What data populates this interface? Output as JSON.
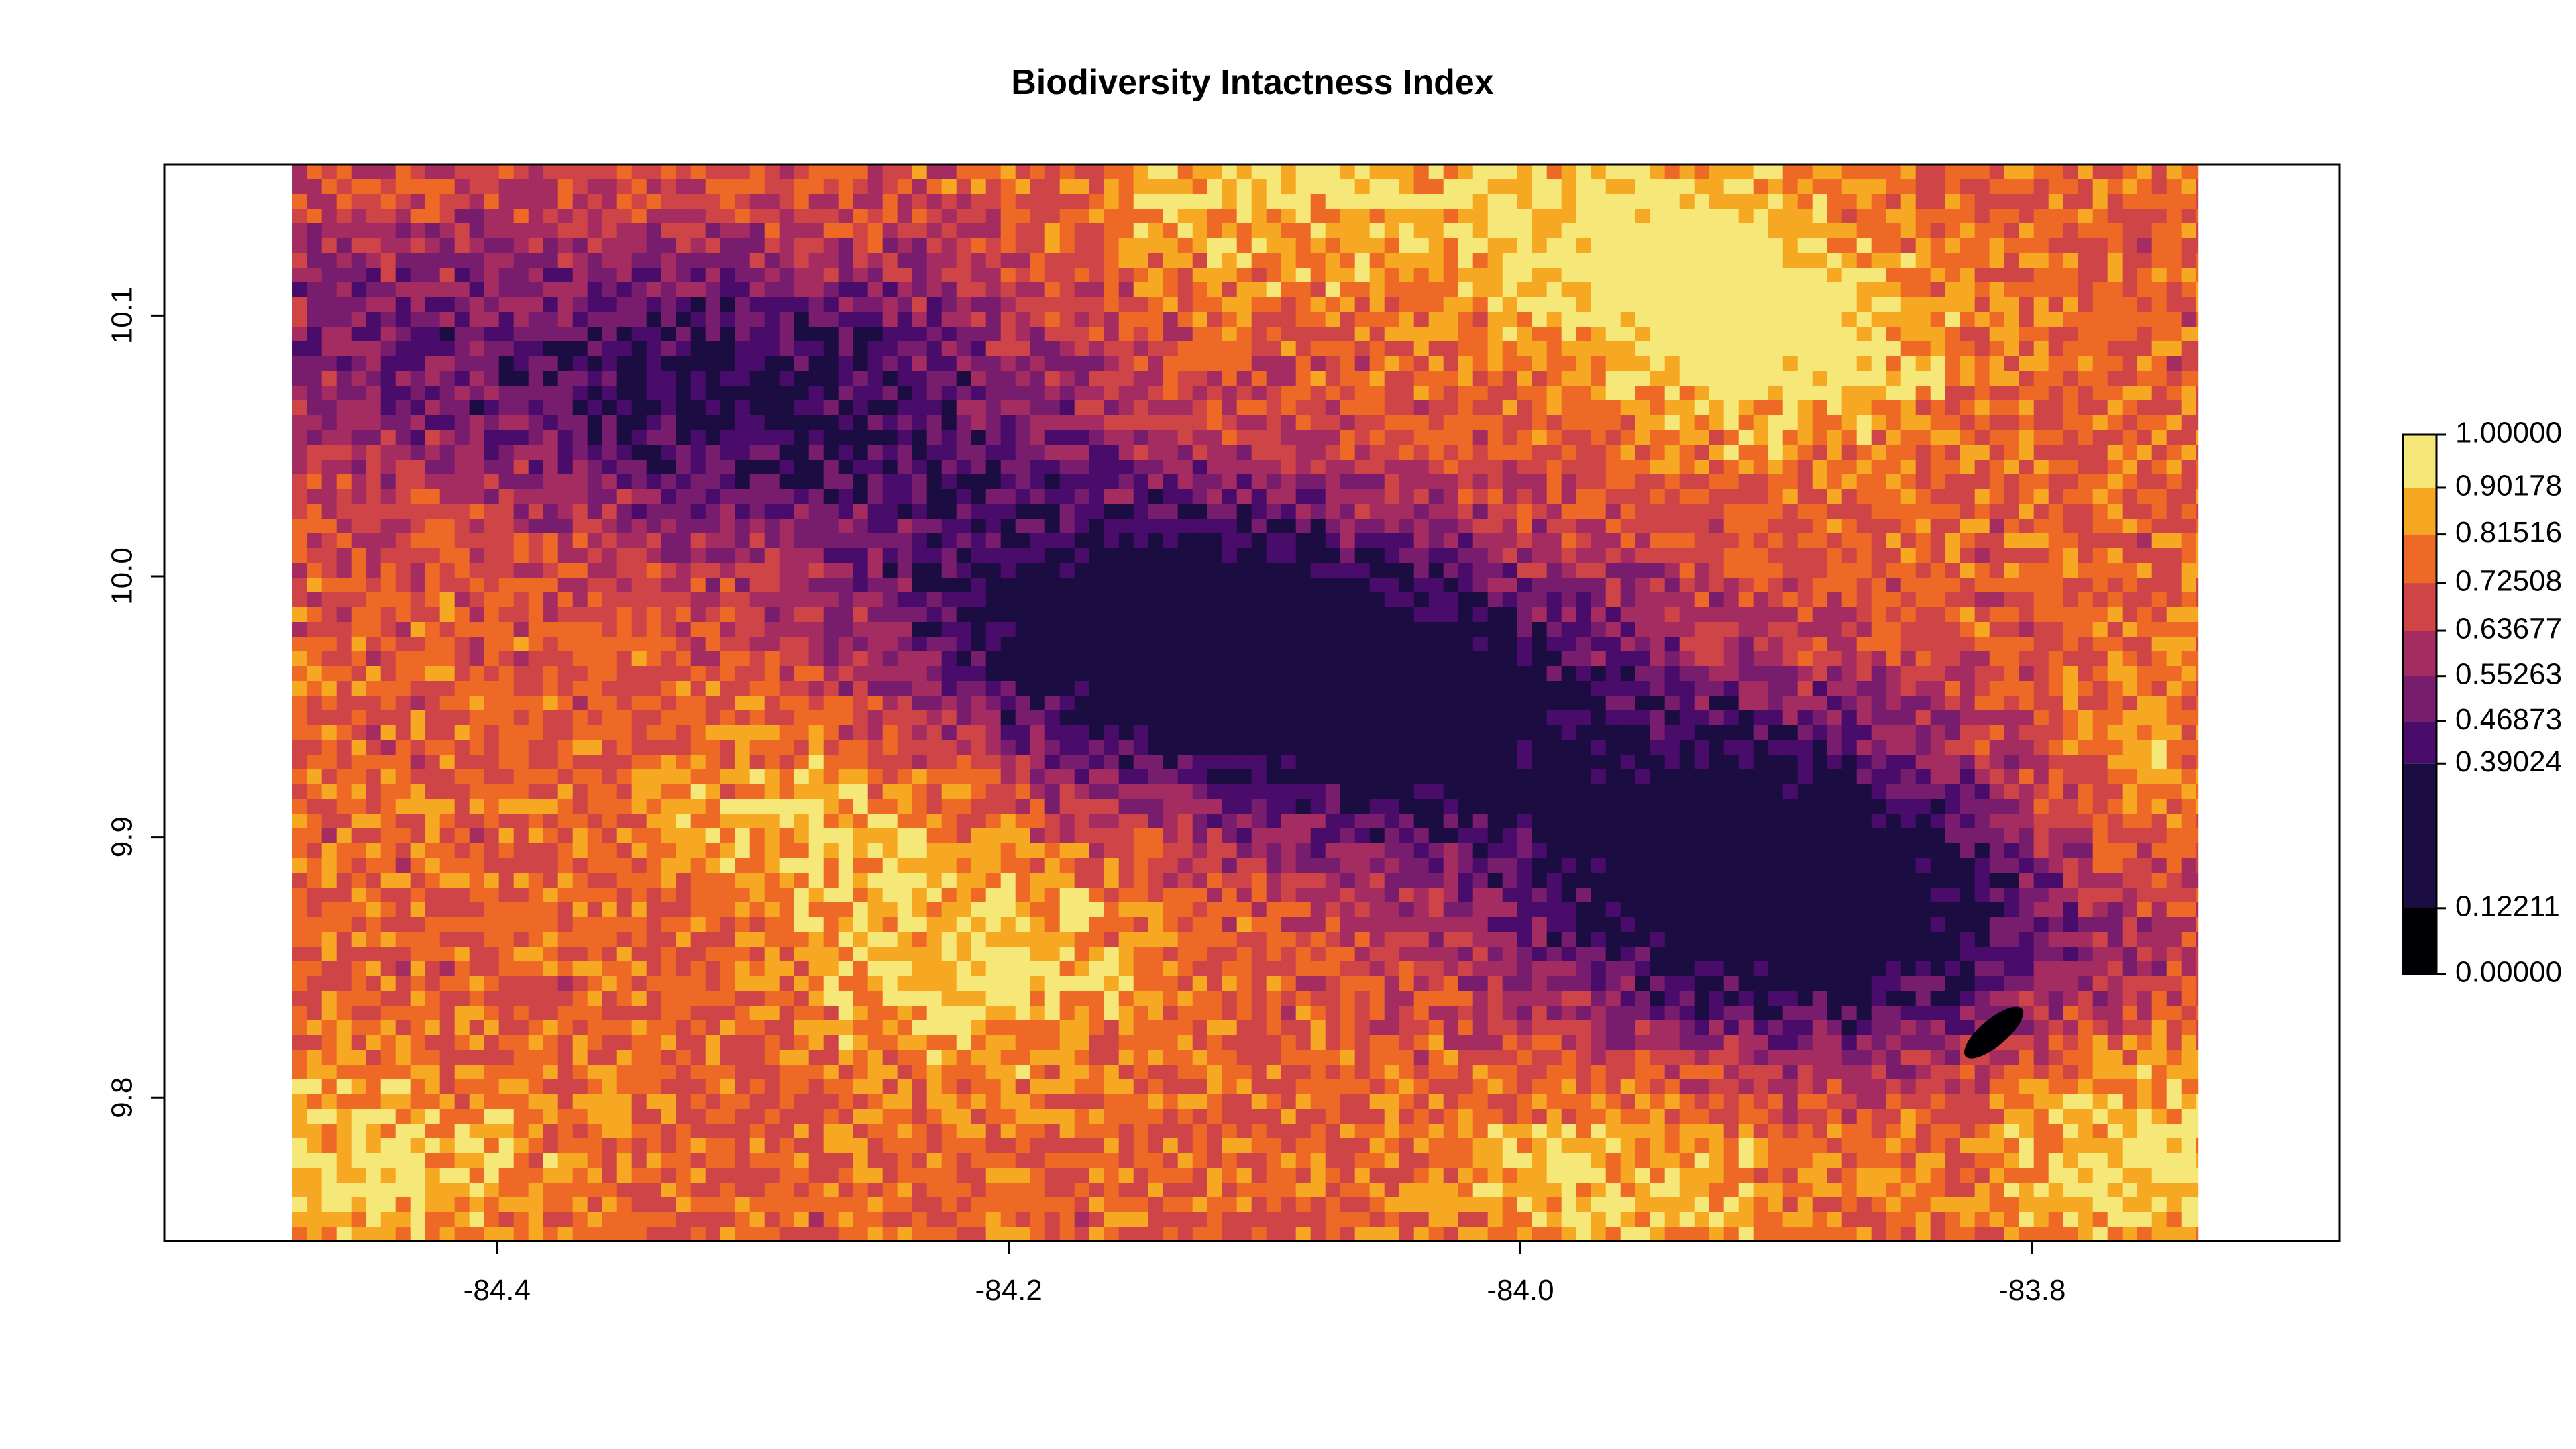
{
  "chart_data": {
    "type": "heatmap",
    "title": "Biodiversity Intactness Index",
    "xlabel": "",
    "ylabel": "",
    "xlim": [
      -84.53,
      -83.68
    ],
    "ylim": [
      9.745,
      10.158
    ],
    "raster_extent": {
      "x": [
        -84.48,
        -83.735
      ],
      "y": [
        9.745,
        10.158
      ]
    },
    "x_ticks": [
      -84.4,
      -84.2,
      -84.0,
      -83.8
    ],
    "x_tick_labels": [
      "-84.4",
      "-84.2",
      "-84.0",
      "-83.8"
    ],
    "y_ticks": [
      9.8,
      9.9,
      10.0,
      10.1
    ],
    "y_tick_labels": [
      "9.8",
      "9.9",
      "10.0",
      "10.1"
    ],
    "legend": {
      "position": "right",
      "breaks": [
        0.0,
        0.12211,
        0.39024,
        0.46873,
        0.55263,
        0.63677,
        0.72508,
        0.81516,
        0.90178,
        1.0
      ],
      "labels": [
        "0.00000",
        "0.12211",
        "0.39024",
        "0.46873",
        "0.55263",
        "0.63677",
        "0.72508",
        "0.81516",
        "0.90178",
        "1.00000"
      ],
      "colors": [
        "#000004",
        "#1b0c41",
        "#4a0c6b",
        "#781c6d",
        "#a52c60",
        "#cf4446",
        "#ed6925",
        "#f7a823",
        "#f5e878"
      ]
    },
    "low_value_zones": [
      {
        "lon": -84.15,
        "lat": 9.985,
        "value": 0.32
      },
      {
        "lon": -84.05,
        "lat": 9.95,
        "value": 0.34
      },
      {
        "lon": -84.29,
        "lat": 10.07,
        "value": 0.38
      },
      {
        "lon": -83.9,
        "lat": 9.9,
        "value": 0.4
      },
      {
        "lon": -83.88,
        "lat": 9.86,
        "value": 0.42
      },
      {
        "lon": -84.45,
        "lat": 10.09,
        "value": 0.55
      }
    ],
    "high_value_zones": [
      {
        "lon": -83.9,
        "lat": 10.09,
        "value": 0.97
      },
      {
        "lon": -83.96,
        "lat": 10.13,
        "value": 0.96
      },
      {
        "lon": -84.1,
        "lat": 10.15,
        "value": 0.93
      },
      {
        "lon": -84.21,
        "lat": 9.85,
        "value": 0.92
      },
      {
        "lon": -84.45,
        "lat": 9.77,
        "value": 0.93
      },
      {
        "lon": -83.76,
        "lat": 9.78,
        "value": 0.95
      },
      {
        "lon": -83.96,
        "lat": 9.77,
        "value": 0.92
      },
      {
        "lon": -84.27,
        "lat": 9.91,
        "value": 0.88
      },
      {
        "lon": -83.76,
        "lat": 9.92,
        "value": 0.88
      }
    ],
    "zero_value_patch": {
      "lon": -83.815,
      "lat": 9.825,
      "value": 0.0
    }
  }
}
